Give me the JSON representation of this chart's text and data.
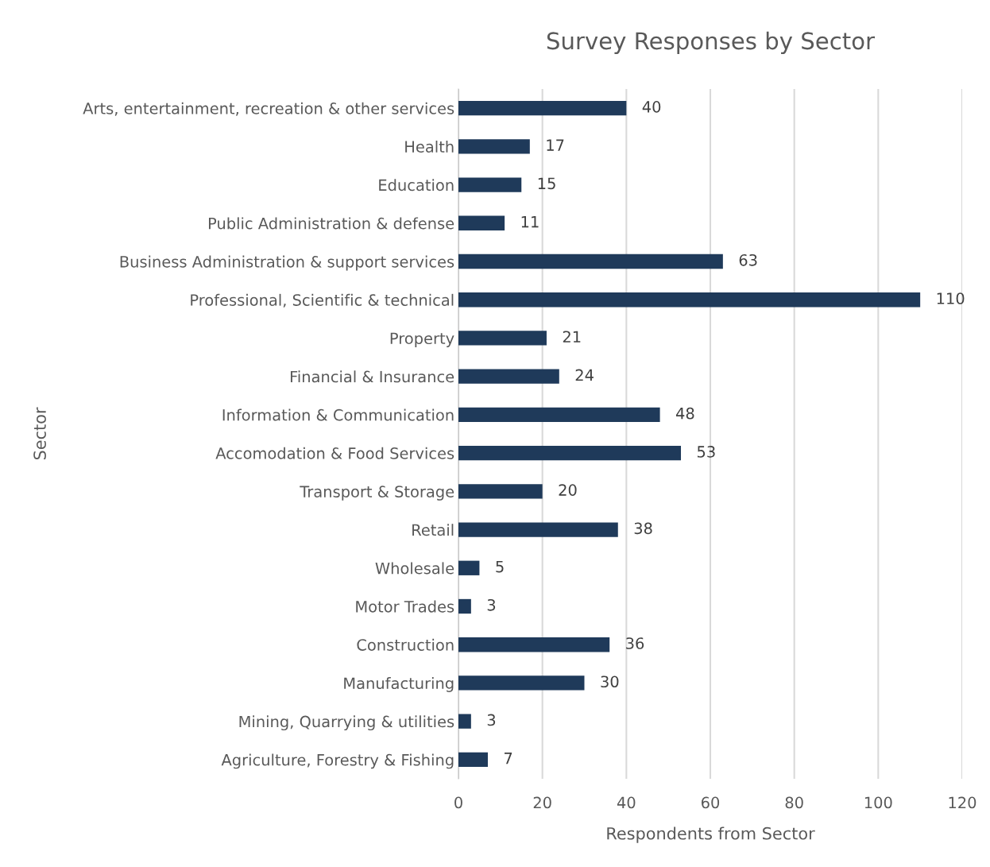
{
  "chart_data": {
    "type": "bar",
    "orientation": "horizontal",
    "title": "Survey Responses by Sector",
    "xlabel": "Respondents from Sector",
    "ylabel": "Sector",
    "categories": [
      "Arts, entertainment, recreation & other services",
      "Health",
      "Education",
      "Public Administration & defense",
      "Business Administration & support services",
      "Professional, Scientific & technical",
      "Property",
      "Financial & Insurance",
      "Information & Communication",
      "Accomodation & Food Services",
      "Transport & Storage",
      "Retail",
      "Wholesale",
      "Motor Trades",
      "Construction",
      "Manufacturing",
      "Mining, Quarrying & utilities",
      "Agriculture, Forestry & Fishing"
    ],
    "values": [
      40,
      17,
      15,
      11,
      63,
      110,
      21,
      24,
      48,
      53,
      20,
      38,
      5,
      3,
      36,
      30,
      3,
      7
    ],
    "color": "#1f3a5a",
    "xlim": [
      0,
      120
    ],
    "xticks": [
      0,
      20,
      40,
      60,
      80,
      100,
      120
    ],
    "grid": "x",
    "data_labels": true
  }
}
